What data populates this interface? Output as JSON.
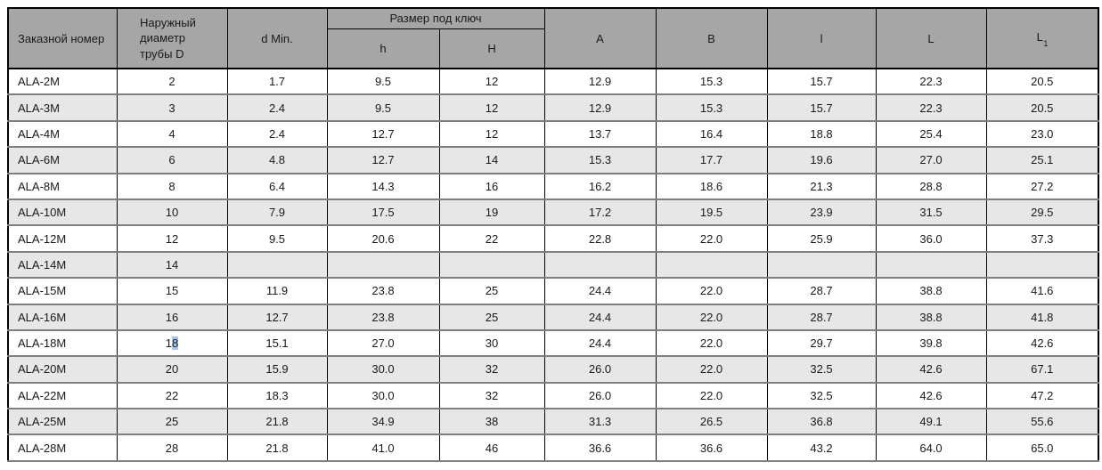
{
  "table": {
    "columns": {
      "order": "Заказной номер",
      "outer_diameter": "Наружный диаметр трубы D",
      "d_min": "d Min.",
      "wrench_size_group": "Размер под ключ",
      "h": "h",
      "H": "H",
      "A": "A",
      "B": "B",
      "l": "l",
      "L": "L",
      "L1_base": "L",
      "L1_sub": "1"
    },
    "colors": {
      "header_bg": "#a6a6a6",
      "row_bg": "#ffffff",
      "row_alt_bg": "#e8e7e7",
      "grid_dark": "#000000",
      "grid_gray": "#7f7f7f",
      "text": "#1a1a1a",
      "selection_highlight": "#a8c7e6"
    },
    "rows": [
      {
        "order": "ALA-2M",
        "D": "2",
        "d_min": "1.7",
        "h": "9.5",
        "H": "12",
        "A": "12.9",
        "B": "15.3",
        "l": "15.7",
        "L": "22.3",
        "L1": "20.5"
      },
      {
        "order": "ALA-3M",
        "D": "3",
        "d_min": "2.4",
        "h": "9.5",
        "H": "12",
        "A": "12.9",
        "B": "15.3",
        "l": "15.7",
        "L": "22.3",
        "L1": "20.5"
      },
      {
        "order": "ALA-4M",
        "D": "4",
        "d_min": "2.4",
        "h": "12.7",
        "H": "12",
        "A": "13.7",
        "B": "16.4",
        "l": "18.8",
        "L": "25.4",
        "L1": "23.0"
      },
      {
        "order": "ALA-6M",
        "D": "6",
        "d_min": "4.8",
        "h": "12.7",
        "H": "14",
        "A": "15.3",
        "B": "17.7",
        "l": "19.6",
        "L": "27.0",
        "L1": "25.1"
      },
      {
        "order": "ALA-8M",
        "D": "8",
        "d_min": "6.4",
        "h": "14.3",
        "H": "16",
        "A": "16.2",
        "B": "18.6",
        "l": "21.3",
        "L": "28.8",
        "L1": "27.2"
      },
      {
        "order": "ALA-10M",
        "D": "10",
        "d_min": "7.9",
        "h": "17.5",
        "H": "19",
        "A": "17.2",
        "B": "19.5",
        "l": "23.9",
        "L": "31.5",
        "L1": "29.5"
      },
      {
        "order": "ALA-12M",
        "D": "12",
        "d_min": "9.5",
        "h": "20.6",
        "H": "22",
        "A": "22.8",
        "B": "22.0",
        "l": "25.9",
        "L": "36.0",
        "L1": "37.3"
      },
      {
        "order": "ALA-14M",
        "D": "14",
        "d_min": "",
        "h": "",
        "H": "",
        "A": "",
        "B": "",
        "l": "",
        "L": "",
        "L1": ""
      },
      {
        "order": "ALA-15M",
        "D": "15",
        "d_min": "11.9",
        "h": "23.8",
        "H": "25",
        "A": "24.4",
        "B": "22.0",
        "l": "28.7",
        "L": "38.8",
        "L1": "41.6"
      },
      {
        "order": "ALA-16M",
        "D": "16",
        "d_min": "12.7",
        "h": "23.8",
        "H": "25",
        "A": "24.4",
        "B": "22.0",
        "l": "28.7",
        "L": "38.8",
        "L1": "41.8"
      },
      {
        "order": "ALA-18M",
        "D": "18",
        "D_selected_from": 1,
        "d_min": "15.1",
        "h": "27.0",
        "H": "30",
        "A": "24.4",
        "B": "22.0",
        "l": "29.7",
        "L": "39.8",
        "L1": "42.6"
      },
      {
        "order": "ALA-20M",
        "D": "20",
        "d_min": "15.9",
        "h": "30.0",
        "H": "32",
        "A": "26.0",
        "B": "22.0",
        "l": "32.5",
        "L": "42.6",
        "L1": "67.1"
      },
      {
        "order": "ALA-22M",
        "D": "22",
        "d_min": "18.3",
        "h": "30.0",
        "H": "32",
        "A": "26.0",
        "B": "22.0",
        "l": "32.5",
        "L": "42.6",
        "L1": "47.2"
      },
      {
        "order": "ALA-25M",
        "D": "25",
        "d_min": "21.8",
        "h": "34.9",
        "H": "38",
        "A": "31.3",
        "B": "26.5",
        "l": "36.8",
        "L": "49.1",
        "L1": "55.6"
      },
      {
        "order": "ALA-28M",
        "D": "28",
        "d_min": "21.8",
        "h": "41.0",
        "H": "46",
        "A": "36.6",
        "B": "36.6",
        "l": "43.2",
        "L": "64.0",
        "L1": "65.0"
      }
    ]
  }
}
